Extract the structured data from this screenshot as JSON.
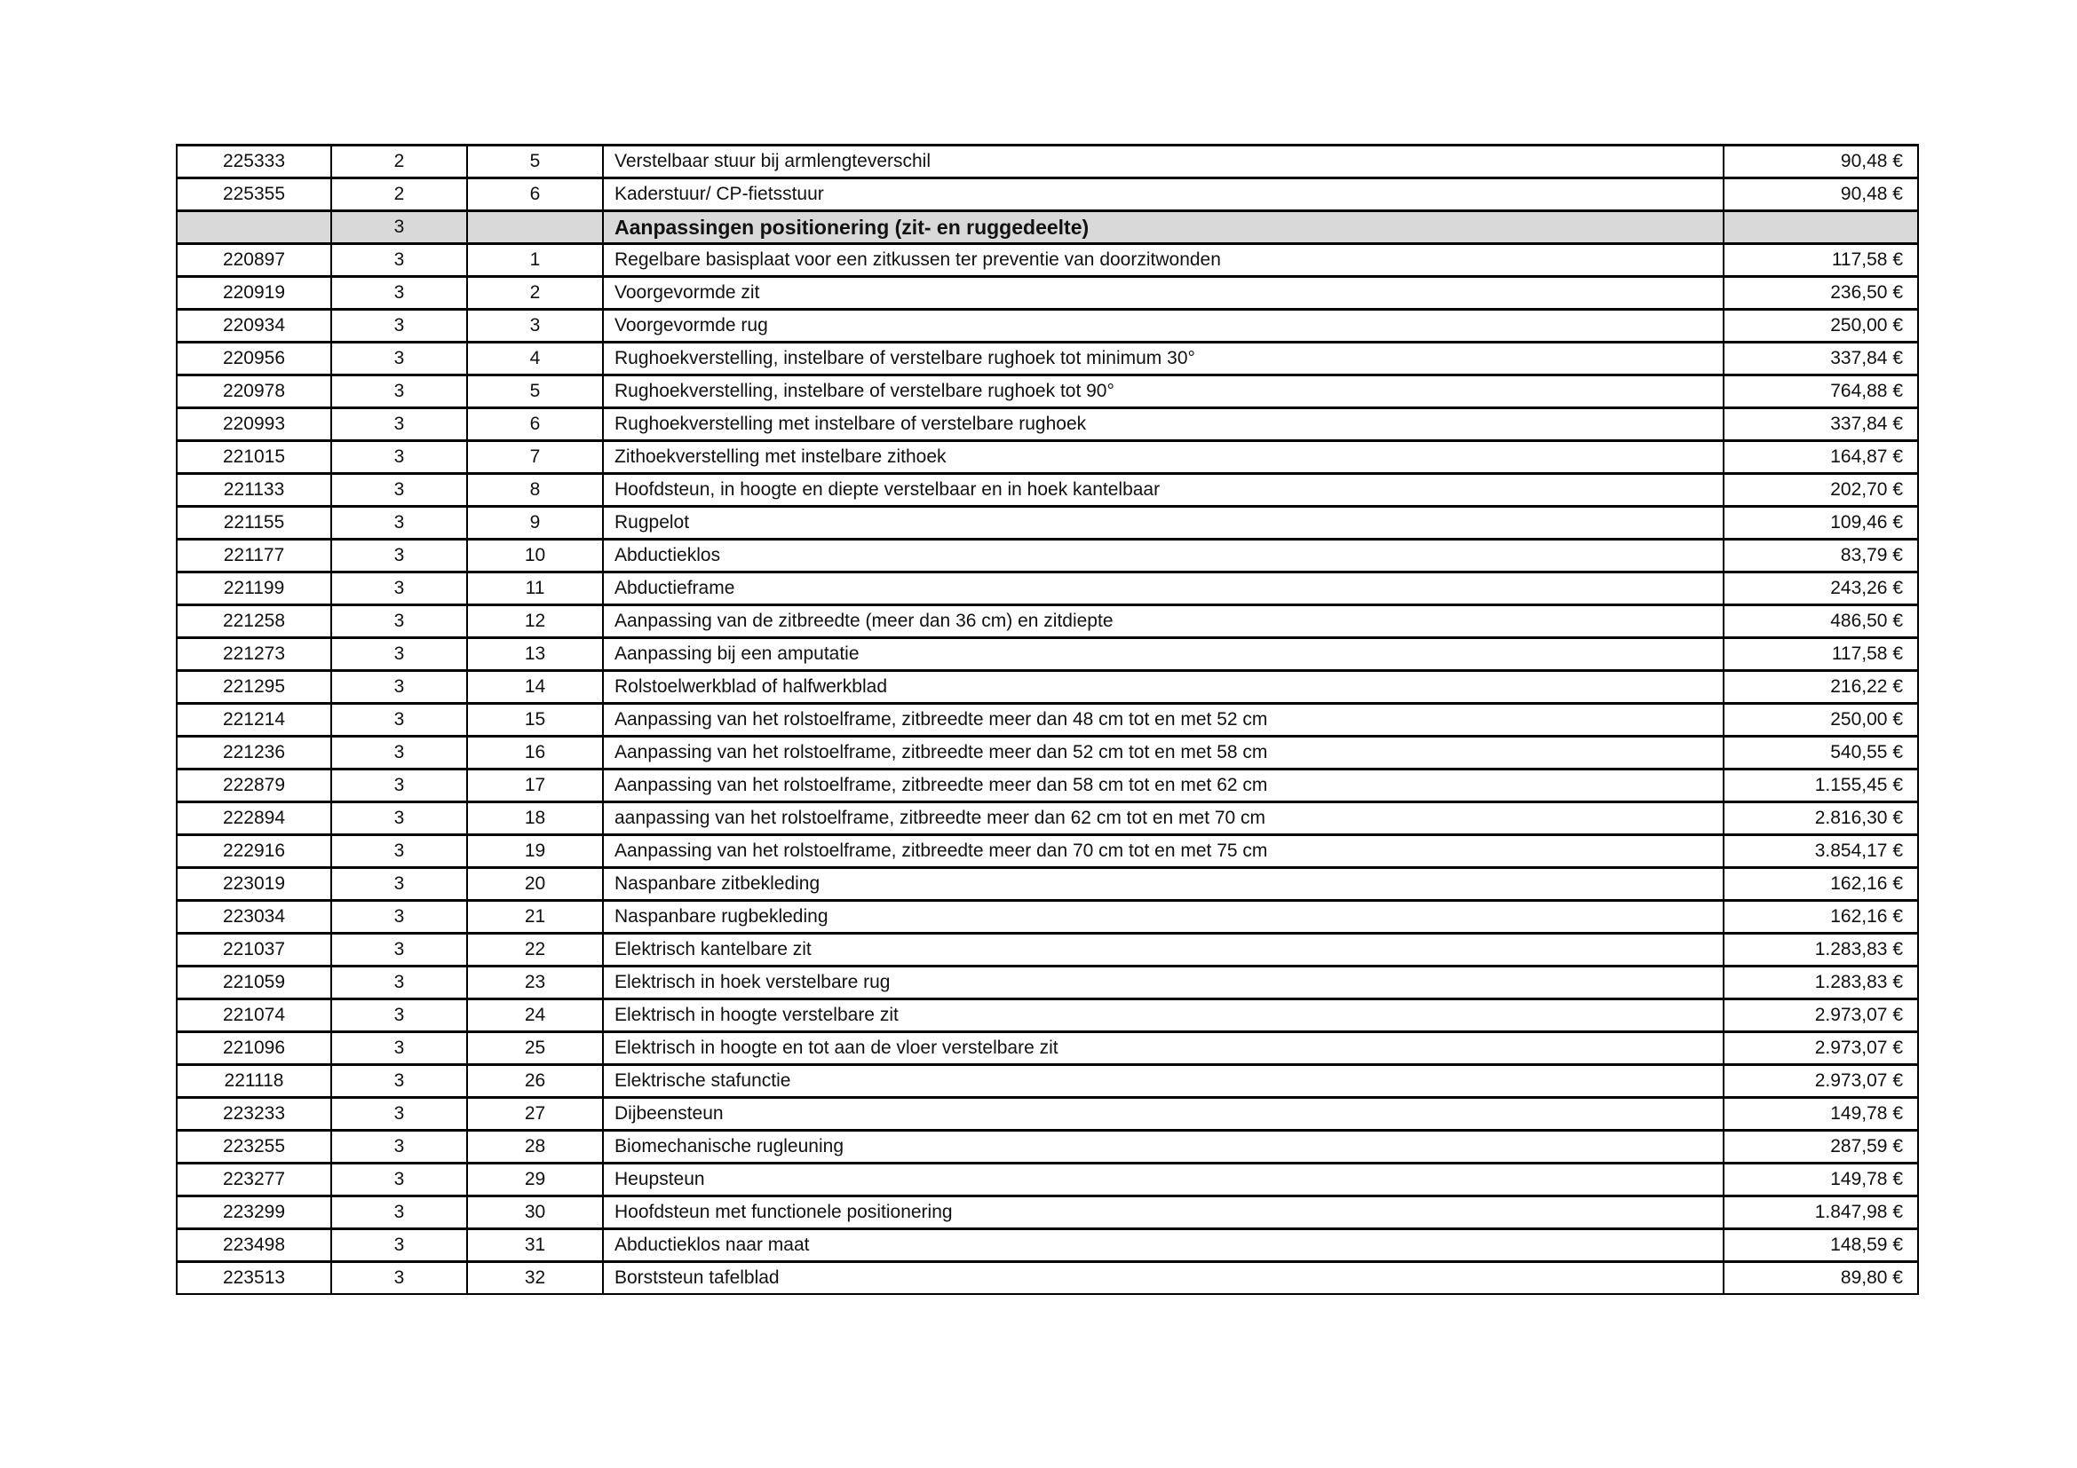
{
  "rows": [
    {
      "code": "225333",
      "group": "2",
      "nr": "5",
      "desc": "Verstelbaar stuur bij armlengteverschil",
      "price": "90,48 €"
    },
    {
      "code": "225355",
      "group": "2",
      "nr": "6",
      "desc": "Kaderstuur/ CP-fietsstuur",
      "price": "90,48 €"
    },
    {
      "code": "",
      "group": "3",
      "nr": "",
      "desc": "Aanpassingen positionering (zit- en ruggedeelte)",
      "price": "",
      "section": true
    },
    {
      "code": "220897",
      "group": "3",
      "nr": "1",
      "desc": "Regelbare basisplaat voor een zitkussen ter preventie van doorzitwonden",
      "price": "117,58 €"
    },
    {
      "code": "220919",
      "group": "3",
      "nr": "2",
      "desc": "Voorgevormde zit",
      "price": "236,50 €"
    },
    {
      "code": "220934",
      "group": "3",
      "nr": "3",
      "desc": "Voorgevormde rug",
      "price": "250,00 €"
    },
    {
      "code": "220956",
      "group": "3",
      "nr": "4",
      "desc": "Rughoekverstelling, instelbare of verstelbare rughoek tot minimum 30°",
      "price": "337,84 €"
    },
    {
      "code": "220978",
      "group": "3",
      "nr": "5",
      "desc": "Rughoekverstelling, instelbare of verstelbare rughoek tot 90°",
      "price": "764,88 €"
    },
    {
      "code": "220993",
      "group": "3",
      "nr": "6",
      "desc": "Rughoekverstelling met instelbare of verstelbare rughoek",
      "price": "337,84 €"
    },
    {
      "code": "221015",
      "group": "3",
      "nr": "7",
      "desc": "Zithoekverstelling met instelbare zithoek",
      "price": "164,87 €"
    },
    {
      "code": "221133",
      "group": "3",
      "nr": "8",
      "desc": "Hoofdsteun, in hoogte en diepte verstelbaar en in hoek kantelbaar",
      "price": "202,70 €"
    },
    {
      "code": "221155",
      "group": "3",
      "nr": "9",
      "desc": "Rugpelot",
      "price": "109,46 €"
    },
    {
      "code": "221177",
      "group": "3",
      "nr": "10",
      "desc": "Abductieklos",
      "price": "83,79 €"
    },
    {
      "code": "221199",
      "group": "3",
      "nr": "11",
      "desc": "Abductieframe",
      "price": "243,26 €"
    },
    {
      "code": "221258",
      "group": "3",
      "nr": "12",
      "desc": "Aanpassing van de zitbreedte (meer dan 36 cm) en zitdiepte",
      "price": "486,50 €"
    },
    {
      "code": "221273",
      "group": "3",
      "nr": "13",
      "desc": "Aanpassing bij een amputatie",
      "price": "117,58 €"
    },
    {
      "code": "221295",
      "group": "3",
      "nr": "14",
      "desc": "Rolstoelwerkblad of halfwerkblad",
      "price": "216,22 €"
    },
    {
      "code": "221214",
      "group": "3",
      "nr": "15",
      "desc": "Aanpassing van het rolstoelframe, zitbreedte meer dan 48 cm tot en met 52 cm",
      "price": "250,00 €"
    },
    {
      "code": "221236",
      "group": "3",
      "nr": "16",
      "desc": "Aanpassing van het rolstoelframe, zitbreedte meer dan 52 cm tot en met 58 cm",
      "price": "540,55 €"
    },
    {
      "code": "222879",
      "group": "3",
      "nr": "17",
      "desc": "Aanpassing van het rolstoelframe, zitbreedte meer dan 58 cm tot en met 62 cm",
      "price": "1.155,45 €"
    },
    {
      "code": "222894",
      "group": "3",
      "nr": "18",
      "desc": "aanpassing van het rolstoelframe, zitbreedte meer dan 62 cm tot en met 70 cm",
      "price": "2.816,30 €"
    },
    {
      "code": "222916",
      "group": "3",
      "nr": "19",
      "desc": "Aanpassing van het rolstoelframe, zitbreedte meer dan 70 cm tot en met 75 cm",
      "price": "3.854,17 €"
    },
    {
      "code": "223019",
      "group": "3",
      "nr": "20",
      "desc": "Naspanbare zitbekleding",
      "price": "162,16 €"
    },
    {
      "code": "223034",
      "group": "3",
      "nr": "21",
      "desc": "Naspanbare rugbekleding",
      "price": "162,16 €"
    },
    {
      "code": "221037",
      "group": "3",
      "nr": "22",
      "desc": "Elektrisch kantelbare zit",
      "price": "1.283,83 €"
    },
    {
      "code": "221059",
      "group": "3",
      "nr": "23",
      "desc": "Elektrisch in hoek verstelbare rug",
      "price": "1.283,83 €"
    },
    {
      "code": "221074",
      "group": "3",
      "nr": "24",
      "desc": "Elektrisch in hoogte verstelbare zit",
      "price": "2.973,07 €"
    },
    {
      "code": "221096",
      "group": "3",
      "nr": "25",
      "desc": "Elektrisch in hoogte en tot aan de vloer verstelbare zit",
      "price": "2.973,07 €"
    },
    {
      "code": "221118",
      "group": "3",
      "nr": "26",
      "desc": "Elektrische stafunctie",
      "price": "2.973,07 €"
    },
    {
      "code": "223233",
      "group": "3",
      "nr": "27",
      "desc": "Dijbeensteun",
      "price": "149,78 €"
    },
    {
      "code": "223255",
      "group": "3",
      "nr": "28",
      "desc": "Biomechanische rugleuning",
      "price": "287,59 €"
    },
    {
      "code": "223277",
      "group": "3",
      "nr": "29",
      "desc": "Heupsteun",
      "price": "149,78 €"
    },
    {
      "code": "223299",
      "group": "3",
      "nr": "30",
      "desc": "Hoofdsteun met functionele positionering",
      "price": "1.847,98 €"
    },
    {
      "code": "223498",
      "group": "3",
      "nr": "31",
      "desc": "Abductieklos naar maat",
      "price": "148,59 €"
    },
    {
      "code": "223513",
      "group": "3",
      "nr": "32",
      "desc": "Borststeun tafelblad",
      "price": "89,80 €"
    }
  ]
}
